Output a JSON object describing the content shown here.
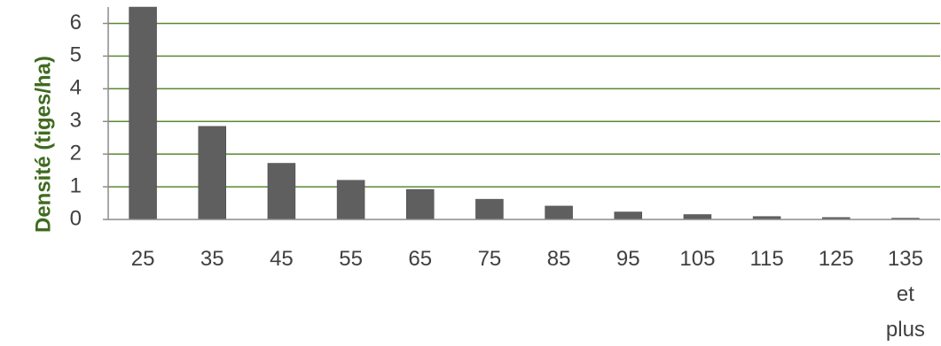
{
  "chart_data": {
    "type": "bar",
    "title": "",
    "xlabel": "",
    "ylabel": "Densité (tiges/ha)",
    "categories": [
      "25",
      "35",
      "45",
      "55",
      "65",
      "75",
      "85",
      "95",
      "105",
      "115",
      "125",
      "135 et plus"
    ],
    "values": [
      6.5,
      2.85,
      1.72,
      1.2,
      0.92,
      0.62,
      0.41,
      0.23,
      0.15,
      0.09,
      0.06,
      0.04
    ],
    "ylim": [
      0,
      6.5
    ],
    "yticks": [
      "0",
      "1",
      "2",
      "3",
      "4",
      "5",
      "6"
    ],
    "grid": true,
    "legend": "none",
    "colors": {
      "bar": "#5f5f5f",
      "bar_edge": "#4a4a4a",
      "grid": "#5b8a2e",
      "axis": "#8c8c8c",
      "tick_text": "#404040",
      "ylabel_text": "#3f6b1f"
    }
  }
}
